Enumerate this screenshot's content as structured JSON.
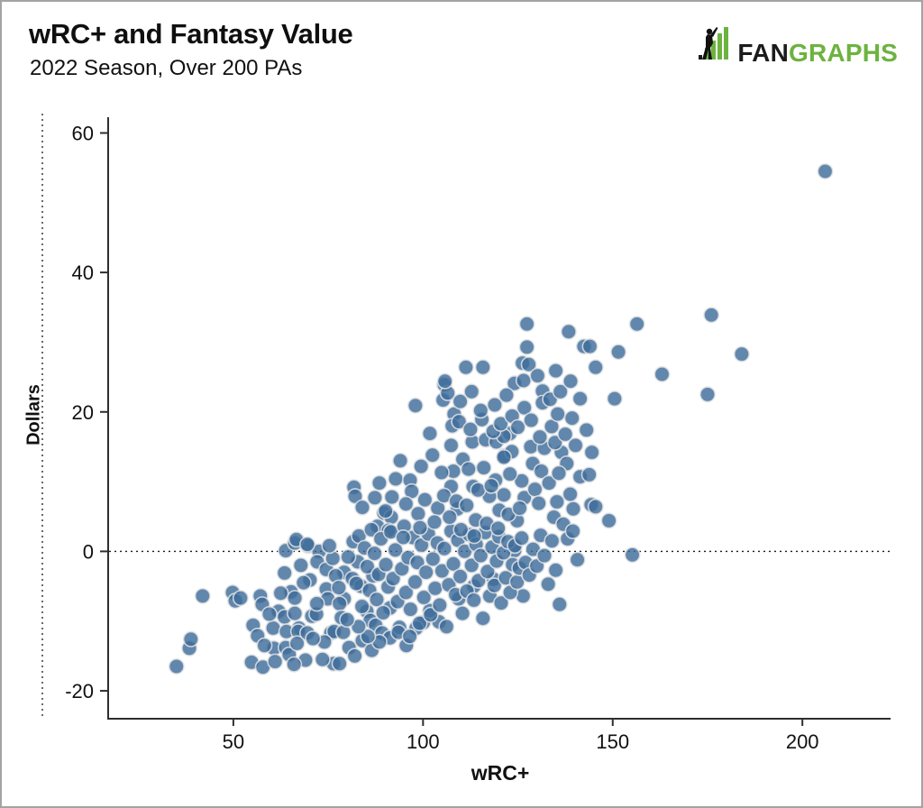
{
  "header": {
    "title": "wRC+ and Fantasy Value",
    "subtitle": "2022 Season, Over 200 PAs"
  },
  "logo": {
    "fan": "FAN",
    "graphs": "GRAPHS",
    "green": "#6cb33f",
    "black": "#1b1b1b"
  },
  "chart_data": {
    "type": "scatter",
    "title": "wRC+ and Fantasy Value",
    "subtitle": "2022 Season, Over 200 PAs",
    "xlabel": "wRC+",
    "ylabel": "Dollars",
    "xlim": [
      17,
      223
    ],
    "ylim": [
      -24,
      62
    ],
    "x_ticks": [
      50,
      100,
      150,
      200
    ],
    "y_ticks": [
      -20,
      0,
      20,
      40,
      60
    ],
    "zero_line_y": 0,
    "grid": false,
    "legend": "none",
    "axis_color": "#2e2e2e",
    "tick_label_color": "#111111",
    "marker": {
      "fill": "#3e6c9b",
      "fill_opacity": 0.82,
      "stroke": "#e3e3e3",
      "stroke_width": 1.6,
      "radius": 8.2
    },
    "points": [
      [
        35.0,
        -16.5
      ],
      [
        38.4,
        -13.9
      ],
      [
        38.8,
        -12.6
      ],
      [
        41.9,
        -6.4
      ],
      [
        49.8,
        -5.9
      ],
      [
        50.5,
        -7.1
      ],
      [
        51.9,
        -6.7
      ],
      [
        54.8,
        -15.9
      ],
      [
        57.8,
        -16.6
      ],
      [
        57.1,
        -6.4
      ],
      [
        57.6,
        -7.6
      ],
      [
        55.2,
        -10.6
      ],
      [
        56.4,
        -12.1
      ],
      [
        60.5,
        -11.0
      ],
      [
        60.7,
        -13.9
      ],
      [
        63.8,
        0.1
      ],
      [
        66.2,
        1.2
      ],
      [
        69.7,
        0.8
      ],
      [
        72.6,
        0.0
      ],
      [
        72.1,
        -1.5
      ],
      [
        63.5,
        -3.1
      ],
      [
        70.2,
        -4.1
      ],
      [
        74.5,
        -2.6
      ],
      [
        65.2,
        -5.8
      ],
      [
        66.2,
        -6.7
      ],
      [
        74.5,
        -5.4
      ],
      [
        74.9,
        -6.8
      ],
      [
        61.9,
        -8.6
      ],
      [
        63.5,
        -9.4
      ],
      [
        66.2,
        -8.9
      ],
      [
        67.3,
        -11.0
      ],
      [
        64.0,
        -11.5
      ],
      [
        67.1,
        -11.5
      ],
      [
        69.5,
        -11.7
      ],
      [
        70.7,
        -9.3
      ],
      [
        71.9,
        -9.0
      ],
      [
        75.7,
        -11.7
      ],
      [
        76.6,
        -11.5
      ],
      [
        63.8,
        -13.8
      ],
      [
        64.7,
        -14.8
      ],
      [
        69.0,
        -15.6
      ],
      [
        76.4,
        -16.1
      ],
      [
        78.0,
        -16.1
      ],
      [
        79.0,
        -11.6
      ],
      [
        79.2,
        -6.8
      ],
      [
        78.0,
        -7.5
      ],
      [
        66.6,
        1.7
      ],
      [
        69.5,
        1.0
      ],
      [
        82.8,
        -1.5
      ],
      [
        79.2,
        -3.0
      ],
      [
        81.4,
        -3.9
      ],
      [
        83.7,
        -5.0
      ],
      [
        86.8,
        -3.5
      ],
      [
        85.2,
        -8.6
      ],
      [
        86.1,
        -9.9
      ],
      [
        87.5,
        -10.6
      ],
      [
        89.2,
        -11.7
      ],
      [
        81.8,
        9.2
      ],
      [
        88.5,
        9.8
      ],
      [
        82.1,
        7.9
      ],
      [
        84.0,
        6.3
      ],
      [
        87.3,
        7.7
      ],
      [
        89.7,
        5.5
      ],
      [
        91.6,
        4.9
      ],
      [
        88.0,
        3.6
      ],
      [
        90.9,
        3.0
      ],
      [
        95.6,
        -13.5
      ],
      [
        91.3,
        -12.4
      ],
      [
        100.1,
        -10.2
      ],
      [
        104.2,
        -10.1
      ],
      [
        98.2,
        -11.0
      ],
      [
        101.8,
        -8.5
      ],
      [
        91.3,
        -8.1
      ],
      [
        109.4,
        -6.8
      ],
      [
        113.4,
        -5.0
      ],
      [
        118.6,
        -4.0
      ],
      [
        126.4,
        -6.4
      ],
      [
        136.0,
        -7.6
      ],
      [
        124.1,
        0.1
      ],
      [
        138.1,
        1.8
      ],
      [
        140.7,
        -1.2
      ],
      [
        92.8,
        10.4
      ],
      [
        96.6,
        10.2
      ],
      [
        97.0,
        8.6
      ],
      [
        90.1,
        5.8
      ],
      [
        98.7,
        5.4
      ],
      [
        103.9,
        6.2
      ],
      [
        109.1,
        6.1
      ],
      [
        113.9,
        4.5
      ],
      [
        120.1,
        5.9
      ],
      [
        124.8,
        4.4
      ],
      [
        101.8,
        16.9
      ],
      [
        107.4,
        15.2
      ],
      [
        113.0,
        15.7
      ],
      [
        116.5,
        16.0
      ],
      [
        119.3,
        15.7
      ],
      [
        121.5,
        13.7
      ],
      [
        108.0,
        11.5
      ],
      [
        113.2,
        9.3
      ],
      [
        119.1,
        10.2
      ],
      [
        107.4,
        9.3
      ],
      [
        104.9,
        11.3
      ],
      [
        98.0,
        20.9
      ],
      [
        105.3,
        21.7
      ],
      [
        105.6,
        23.9
      ],
      [
        106.5,
        22.7
      ],
      [
        105.8,
        24.4
      ],
      [
        108.2,
        19.7
      ],
      [
        107.7,
        18.0
      ],
      [
        111.3,
        26.4
      ],
      [
        115.8,
        26.4
      ],
      [
        126.2,
        27.0
      ],
      [
        127.9,
        26.8
      ],
      [
        124.1,
        24.1
      ],
      [
        126.5,
        24.5
      ],
      [
        131.5,
        23.0
      ],
      [
        133.9,
        17.9
      ],
      [
        143.1,
        17.4
      ],
      [
        127.4,
        32.6
      ],
      [
        138.4,
        31.5
      ],
      [
        142.4,
        29.4
      ],
      [
        144.0,
        29.4
      ],
      [
        127.4,
        29.3
      ],
      [
        131.5,
        21.3
      ],
      [
        141.4,
        21.9
      ],
      [
        135.5,
        19.7
      ],
      [
        139.3,
        19.1
      ],
      [
        122.9,
        16.9
      ],
      [
        121.3,
        16.5
      ],
      [
        128.4,
        15.0
      ],
      [
        132.0,
        14.8
      ],
      [
        136.5,
        14.2
      ],
      [
        144.5,
        14.2
      ],
      [
        123.4,
        14.3
      ],
      [
        128.9,
        12.6
      ],
      [
        131.2,
        11.5
      ],
      [
        137.9,
        12.6
      ],
      [
        141.4,
        10.7
      ],
      [
        143.8,
        11.0
      ],
      [
        126.0,
        10.1
      ],
      [
        122.9,
        11.1
      ],
      [
        121.3,
        13.5
      ],
      [
        126.7,
        7.7
      ],
      [
        135.3,
        7.1
      ],
      [
        139.6,
        6.1
      ],
      [
        144.3,
        6.7
      ],
      [
        121.3,
        8.1
      ],
      [
        149.0,
        4.4
      ],
      [
        126.7,
        20.6
      ],
      [
        156.4,
        32.6
      ],
      [
        151.5,
        28.6
      ],
      [
        145.5,
        26.4
      ],
      [
        163.0,
        25.4
      ],
      [
        176.0,
        33.9
      ],
      [
        184.0,
        28.3
      ],
      [
        150.5,
        21.9
      ],
      [
        175.0,
        22.5
      ],
      [
        155.2,
        -0.5
      ],
      [
        206.0,
        54.5
      ],
      [
        145.5,
        6.4
      ],
      [
        80.3,
        -0.8
      ],
      [
        81.6,
        1.4
      ],
      [
        82.4,
        -4.6
      ],
      [
        83.1,
        2.2
      ],
      [
        83.9,
        -7.9
      ],
      [
        84.6,
        0.5
      ],
      [
        85.3,
        -2.2
      ],
      [
        85.9,
        -5.6
      ],
      [
        86.4,
        3.1
      ],
      [
        87.2,
        -0.3
      ],
      [
        87.8,
        -6.9
      ],
      [
        88.3,
        -3.3
      ],
      [
        88.9,
        1.8
      ],
      [
        89.5,
        -8.8
      ],
      [
        90.2,
        -1.9
      ],
      [
        90.8,
        -5.1
      ],
      [
        91.5,
        2.8
      ],
      [
        92.1,
        -3.9
      ],
      [
        92.7,
        0.2
      ],
      [
        93.3,
        -7.2
      ],
      [
        93.8,
        -10.9
      ],
      [
        94.4,
        -2.5
      ],
      [
        95.0,
        3.6
      ],
      [
        95.5,
        -5.9
      ],
      [
        96.1,
        -0.9
      ],
      [
        96.7,
        -8.3
      ],
      [
        97.3,
        2.0
      ],
      [
        97.9,
        -4.4
      ],
      [
        98.5,
        -1.6
      ],
      [
        99.1,
        -10.3
      ],
      [
        99.6,
        0.9
      ],
      [
        100.2,
        -6.6
      ],
      [
        100.8,
        -3.0
      ],
      [
        101.4,
        2.5
      ],
      [
        102.0,
        -9.1
      ],
      [
        102.6,
        -1.1
      ],
      [
        103.2,
        -5.3
      ],
      [
        103.8,
        1.2
      ],
      [
        104.4,
        -7.7
      ],
      [
        105.0,
        -2.8
      ],
      [
        105.6,
        0.4
      ],
      [
        106.2,
        -10.8
      ],
      [
        106.8,
        -4.8
      ],
      [
        107.4,
        2.9
      ],
      [
        108.0,
        -1.8
      ],
      [
        108.6,
        -6.2
      ],
      [
        109.2,
        1.6
      ],
      [
        109.8,
        -3.6
      ],
      [
        110.4,
        -8.9
      ],
      [
        111.0,
        0.0
      ],
      [
        111.6,
        -5.7
      ],
      [
        112.2,
        2.4
      ],
      [
        112.8,
        -2.0
      ],
      [
        113.4,
        -7.0
      ],
      [
        114.0,
        1.0
      ],
      [
        114.6,
        -4.2
      ],
      [
        115.2,
        -0.6
      ],
      [
        115.8,
        -9.6
      ],
      [
        116.4,
        2.7
      ],
      [
        117.0,
        -2.9
      ],
      [
        117.6,
        -6.4
      ],
      [
        118.2,
        0.6
      ],
      [
        118.8,
        -4.9
      ],
      [
        119.4,
        -1.4
      ],
      [
        120.0,
        2.1
      ],
      [
        120.6,
        -7.4
      ],
      [
        121.2,
        -0.2
      ],
      [
        121.8,
        -3.8
      ],
      [
        122.4,
        1.4
      ],
      [
        123.0,
        -5.9
      ],
      [
        123.6,
        -1.9
      ],
      [
        124.2,
        0.8
      ],
      [
        124.8,
        -4.4
      ],
      [
        125.4,
        -2.4
      ],
      [
        126.0,
        1.9
      ],
      [
        127.0,
        -1.6
      ],
      [
        128.0,
        -3.4
      ],
      [
        129.0,
        0.3
      ],
      [
        130.0,
        -2.1
      ],
      [
        131.0,
        2.3
      ],
      [
        132.0,
        -0.6
      ],
      [
        133.0,
        -4.7
      ],
      [
        134.0,
        1.5
      ],
      [
        135.0,
        -2.7
      ],
      [
        77.0,
        -3.5
      ],
      [
        76.2,
        -1.0
      ],
      [
        75.3,
        0.8
      ],
      [
        77.8,
        -5.2
      ],
      [
        78.5,
        -9.5
      ],
      [
        74.0,
        -13.0
      ],
      [
        72.0,
        -7.5
      ],
      [
        71.0,
        -12.5
      ],
      [
        68.5,
        -4.5
      ],
      [
        67.8,
        -2.0
      ],
      [
        66.8,
        -13.2
      ],
      [
        62.5,
        -6.0
      ],
      [
        59.5,
        -9.0
      ],
      [
        58.2,
        -13.5
      ],
      [
        61.0,
        -15.8
      ],
      [
        66.0,
        -16.2
      ],
      [
        73.5,
        -15.5
      ],
      [
        80.5,
        -13.8
      ],
      [
        82.0,
        -15.0
      ],
      [
        84.0,
        -12.8
      ],
      [
        86.5,
        -14.2
      ],
      [
        88.5,
        -13.0
      ],
      [
        93.5,
        -11.6
      ],
      [
        96.5,
        -12.2
      ],
      [
        85.5,
        -12.2
      ],
      [
        83.0,
        -10.8
      ],
      [
        80.0,
        -9.8
      ],
      [
        94.0,
        13.0
      ],
      [
        99.5,
        12.2
      ],
      [
        102.5,
        13.8
      ],
      [
        110.5,
        13.2
      ],
      [
        116.0,
        12.0
      ],
      [
        112.0,
        11.8
      ],
      [
        105.5,
        8.0
      ],
      [
        100.5,
        7.4
      ],
      [
        95.5,
        6.8
      ],
      [
        91.8,
        7.8
      ],
      [
        108.8,
        7.2
      ],
      [
        111.5,
        6.6
      ],
      [
        117.5,
        7.9
      ],
      [
        114.5,
        8.8
      ],
      [
        118.0,
        9.4
      ],
      [
        103.0,
        4.2
      ],
      [
        99.2,
        3.4
      ],
      [
        94.8,
        2.0
      ],
      [
        107.0,
        4.9
      ],
      [
        110.0,
        3.1
      ],
      [
        113.5,
        2.2
      ],
      [
        116.8,
        4.0
      ],
      [
        119.8,
        3.3
      ],
      [
        122.5,
        5.3
      ],
      [
        125.5,
        6.2
      ],
      [
        129.5,
        8.9
      ],
      [
        133.2,
        9.8
      ],
      [
        130.5,
        6.9
      ],
      [
        134.5,
        4.9
      ],
      [
        137.0,
        3.9
      ],
      [
        139.5,
        2.9
      ],
      [
        135.8,
        11.2
      ],
      [
        138.8,
        8.2
      ],
      [
        109.5,
        18.6
      ],
      [
        112.5,
        17.5
      ],
      [
        115.5,
        18.9
      ],
      [
        118.5,
        17.2
      ],
      [
        120.5,
        18.3
      ],
      [
        123.5,
        19.4
      ],
      [
        125.0,
        17.8
      ],
      [
        128.5,
        18.8
      ],
      [
        130.8,
        16.4
      ],
      [
        134.8,
        15.6
      ],
      [
        137.5,
        16.8
      ],
      [
        140.2,
        15.2
      ],
      [
        133.5,
        21.8
      ],
      [
        136.2,
        22.9
      ],
      [
        138.9,
        24.4
      ],
      [
        135.0,
        25.9
      ],
      [
        130.2,
        25.2
      ],
      [
        122.0,
        22.4
      ],
      [
        118.9,
        21.0
      ],
      [
        115.2,
        20.2
      ],
      [
        112.8,
        22.9
      ],
      [
        109.8,
        21.5
      ]
    ]
  }
}
